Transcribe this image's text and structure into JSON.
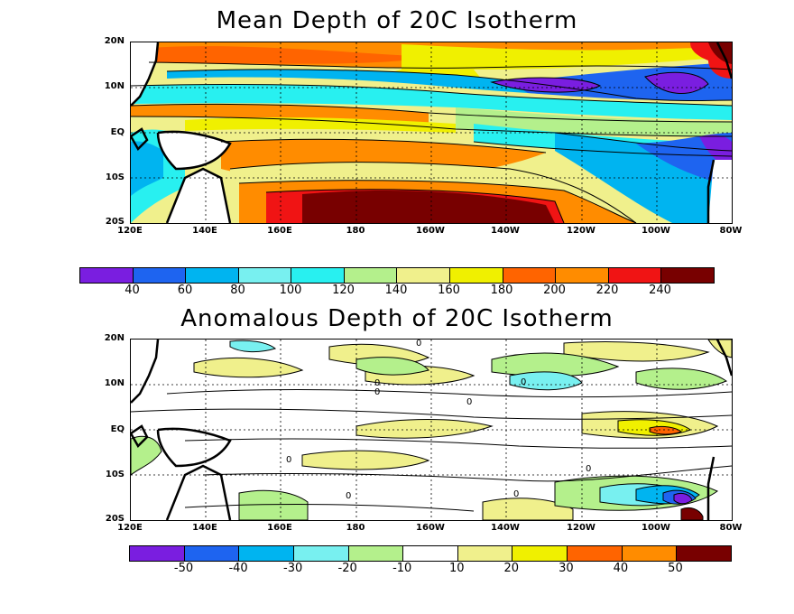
{
  "panel1": {
    "title": "Mean Depth of 20C Isotherm",
    "lat_labels": [
      "20N",
      "10N",
      "EQ",
      "10S",
      "20S"
    ],
    "lon_labels": [
      "120E",
      "140E",
      "160E",
      "180",
      "160W",
      "140W",
      "120W",
      "100W",
      "80W"
    ],
    "colorbar_colors": [
      "#7a1ee0",
      "#1e64f0",
      "#00b4f0",
      "#78f0f0",
      "#28f0f0",
      "#b4f08c",
      "#f0f08c",
      "#f0f000",
      "#ff6400",
      "#ff8c00",
      "#f01414",
      "#780000"
    ],
    "colorbar_labels": [
      "40",
      "60",
      "80",
      "100",
      "120",
      "140",
      "160",
      "180",
      "200",
      "220",
      "240"
    ]
  },
  "panel2": {
    "title": "Anomalous Depth of 20C Isotherm",
    "lat_labels": [
      "20N",
      "10N",
      "EQ",
      "10S",
      "20S"
    ],
    "lon_labels": [
      "120E",
      "140E",
      "160E",
      "180",
      "160W",
      "140W",
      "120W",
      "100W",
      "80W"
    ],
    "colorbar_colors": [
      "#7a1ee0",
      "#1e64f0",
      "#00b4f0",
      "#78f0f0",
      "#b4f08c",
      "#ffffff",
      "#f0f08c",
      "#f0f000",
      "#ff6400",
      "#ff8c00",
      "#780000"
    ],
    "colorbar_labels": [
      "-50",
      "-40",
      "-30",
      "-20",
      "-10",
      "10",
      "20",
      "30",
      "40",
      "50"
    ],
    "contour_label": "0"
  }
}
